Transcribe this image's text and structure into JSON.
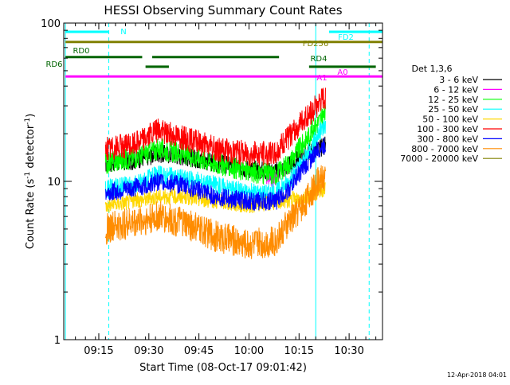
{
  "chart_data": {
    "type": "line",
    "title": "HESSI Observing Summary Count Rates",
    "xlabel": "Start Time (08-Oct-17 09:01:42)",
    "ylabel_main": "Count Rate (s",
    "ylabel_sup1": "-1",
    "ylabel_mid": " detector",
    "ylabel_sup2": "-1",
    "ylabel_end": ")",
    "yscale": "log",
    "ylim": [
      1,
      100
    ],
    "xlim_minutes": [
      544.5,
      640
    ],
    "x_ticks": [
      {
        "label": "09:15",
        "value": 555
      },
      {
        "label": "09:30",
        "value": 570
      },
      {
        "label": "09:45",
        "value": 585
      },
      {
        "label": "10:00",
        "value": 600
      },
      {
        "label": "10:15",
        "value": 615
      },
      {
        "label": "10:30",
        "value": 630
      }
    ],
    "y_ticks": [
      {
        "label": "1",
        "value": 1
      },
      {
        "label": "10",
        "value": 10
      },
      {
        "label": "100",
        "value": 100
      }
    ],
    "legend_title": "Det 1,3,6",
    "legend_position": "right",
    "series": [
      {
        "name": "3 - 6 keV",
        "color": "#000000",
        "noise": 0.06,
        "points": [
          [
            557,
            13
          ],
          [
            565,
            13.5
          ],
          [
            573,
            15
          ],
          [
            580,
            14.5
          ],
          [
            590,
            13
          ],
          [
            600,
            12
          ],
          [
            608,
            11.5
          ],
          [
            612,
            12.5
          ],
          [
            617,
            15
          ],
          [
            621,
            16
          ],
          [
            623,
            17
          ]
        ]
      },
      {
        "name": "6 - 12 keV",
        "color": "#ff00ff",
        "noise": 0.05,
        "points": [
          [
            605,
            10.5
          ],
          [
            607,
            10
          ],
          [
            609,
            11
          ]
        ]
      },
      {
        "name": "12 - 25 keV",
        "color": "#00ff00",
        "noise": 0.07,
        "points": [
          [
            557,
            13
          ],
          [
            565,
            14
          ],
          [
            573,
            16
          ],
          [
            580,
            15
          ],
          [
            590,
            13
          ],
          [
            600,
            11.5
          ],
          [
            608,
            11
          ],
          [
            612,
            13
          ],
          [
            617,
            18
          ],
          [
            621,
            24
          ],
          [
            623,
            27
          ]
        ]
      },
      {
        "name": "25 - 50 keV",
        "color": "#00ffff",
        "noise": 0.06,
        "points": [
          [
            557,
            9
          ],
          [
            565,
            9.5
          ],
          [
            573,
            11
          ],
          [
            580,
            10.5
          ],
          [
            590,
            9.5
          ],
          [
            600,
            8.5
          ],
          [
            608,
            8.5
          ],
          [
            612,
            10
          ],
          [
            617,
            14
          ],
          [
            621,
            20
          ],
          [
            623,
            23
          ]
        ]
      },
      {
        "name": "50 - 100 keV",
        "color": "#ffd700",
        "noise": 0.05,
        "points": [
          [
            557,
            7
          ],
          [
            565,
            7.5
          ],
          [
            573,
            8
          ],
          [
            580,
            8
          ],
          [
            590,
            7.5
          ],
          [
            600,
            7
          ],
          [
            610,
            7.5
          ],
          [
            617,
            8
          ],
          [
            623,
            9
          ]
        ]
      },
      {
        "name": "100 - 300 keV",
        "color": "#ff0000",
        "noise": 0.08,
        "points": [
          [
            557,
            16
          ],
          [
            565,
            17
          ],
          [
            573,
            21
          ],
          [
            580,
            19
          ],
          [
            590,
            16
          ],
          [
            600,
            15
          ],
          [
            608,
            15
          ],
          [
            612,
            19
          ],
          [
            617,
            25
          ],
          [
            621,
            31
          ],
          [
            623,
            34
          ]
        ]
      },
      {
        "name": "300 - 800 keV",
        "color": "#0000ff",
        "noise": 0.06,
        "points": [
          [
            557,
            8.5
          ],
          [
            565,
            9
          ],
          [
            573,
            10
          ],
          [
            580,
            9.5
          ],
          [
            590,
            8
          ],
          [
            600,
            7.5
          ],
          [
            608,
            7.5
          ],
          [
            612,
            9
          ],
          [
            617,
            12.5
          ],
          [
            621,
            16
          ],
          [
            623,
            17
          ]
        ]
      },
      {
        "name": "800 - 7000 keV",
        "color": "#ff8c00",
        "noise": 0.1,
        "points": [
          [
            557,
            5
          ],
          [
            565,
            5.5
          ],
          [
            573,
            6
          ],
          [
            580,
            5.5
          ],
          [
            590,
            4.5
          ],
          [
            600,
            4
          ],
          [
            608,
            4.2
          ],
          [
            612,
            5.5
          ],
          [
            617,
            7.5
          ],
          [
            621,
            10
          ],
          [
            623,
            11
          ]
        ]
      },
      {
        "name": "7000 - 20000 keV",
        "color": "#808000",
        "noise": 0.0,
        "points": []
      }
    ],
    "status_bars": [
      {
        "label": "N",
        "color": "#00ffff",
        "y_level": 88,
        "segments": [
          [
            545,
            558
          ]
        ]
      },
      {
        "label": "FD2",
        "color": "#00ffff",
        "y_level": 88,
        "segments": [
          [
            624,
            640
          ]
        ]
      },
      {
        "label": "FD256",
        "color": "#808000",
        "y_level": 76,
        "segments": [
          [
            545,
            640
          ]
        ]
      },
      {
        "label": "RD0",
        "color": "#006400",
        "y_level": 61,
        "segments": [
          [
            545,
            568
          ],
          [
            571,
            609
          ]
        ]
      },
      {
        "label": "RD4",
        "color": "#006400",
        "y_level": 53,
        "segments": [
          [
            569,
            576
          ],
          [
            618,
            638
          ]
        ]
      },
      {
        "label": "RD6",
        "color": "#006400",
        "y_level": 53,
        "segments": []
      },
      {
        "label": "A1",
        "color": "#ff00ff",
        "y_level": 46,
        "segments": [
          [
            545,
            640
          ]
        ]
      },
      {
        "label": "A0",
        "color": "#ff00ff",
        "y_level": 46,
        "segments": []
      }
    ],
    "vertical_markers": [
      {
        "color": "#00ffff",
        "style": "solid",
        "x": 545
      },
      {
        "color": "#00ffff",
        "style": "dashed",
        "x": 558
      },
      {
        "color": "#00ffff",
        "style": "solid",
        "x": 620
      },
      {
        "color": "#00ffff",
        "style": "dashed",
        "x": 636
      }
    ]
  },
  "footer": {
    "timestamp": "12-Apr-2018 04:01"
  }
}
